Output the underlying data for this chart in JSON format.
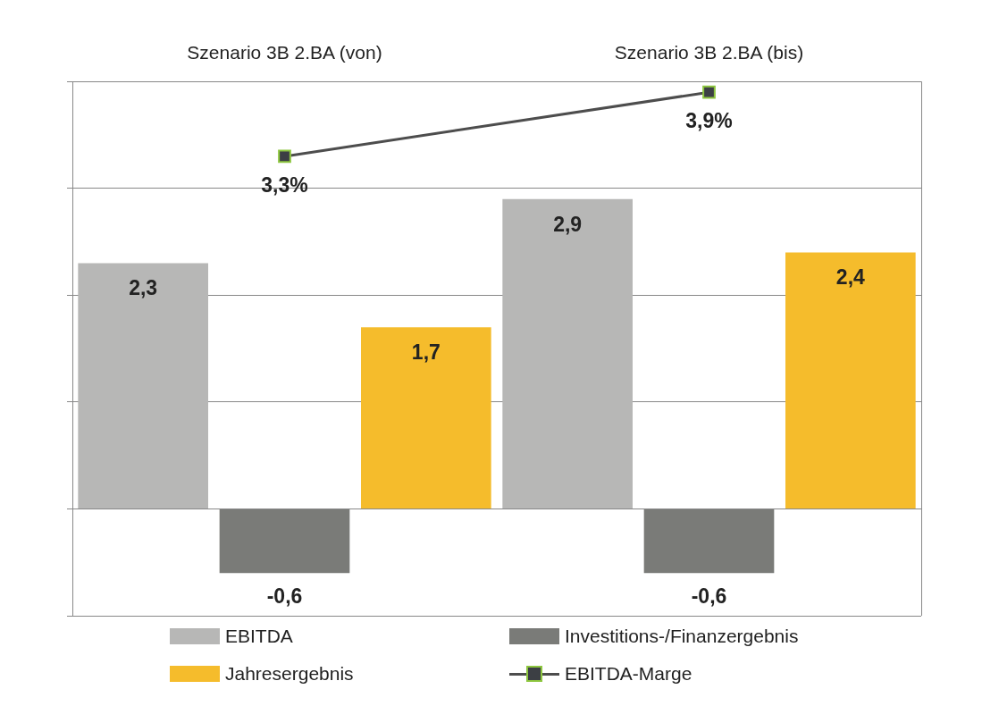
{
  "chart_data": {
    "type": "bar",
    "categories": [
      "Szenario 3B 2.BA (von)",
      "Szenario 3B 2.BA (bis)"
    ],
    "series": [
      {
        "name": "EBITDA",
        "color": "#b7b7b6",
        "values": [
          2.3,
          2.9
        ],
        "value_labels": [
          "2,3",
          "2,9"
        ]
      },
      {
        "name": "Investitions-/Finanzergebnis",
        "color": "#7a7b78",
        "values": [
          -0.6,
          -0.6
        ],
        "value_labels": [
          "-0,6",
          "-0,6"
        ]
      },
      {
        "name": "Jahresergebnis",
        "color": "#f5bc2c",
        "values": [
          1.7,
          2.4
        ],
        "value_labels": [
          "1,7",
          "2,4"
        ]
      },
      {
        "name": "EBITDA-Marge",
        "type": "line",
        "color": "#4d4d4d",
        "values": [
          3.3,
          3.9
        ],
        "value_labels": [
          "3,3%",
          "3,9%"
        ]
      }
    ],
    "ylim": [
      -1,
      4
    ],
    "yticks": [
      {
        "value": -1,
        "label": null
      },
      {
        "value": 0,
        "label": null
      },
      {
        "value": 1,
        "label": null
      },
      {
        "value": 2,
        "label": null
      },
      {
        "value": 3,
        "label": null
      },
      {
        "value": 4,
        "label": null
      }
    ],
    "tick_labels": "x",
    "grid": "y",
    "legend": "bottom",
    "marker": "square",
    "line_style": "solid"
  }
}
